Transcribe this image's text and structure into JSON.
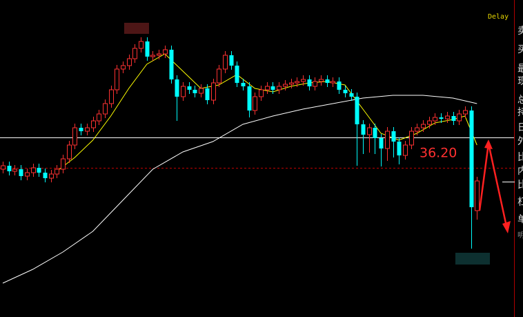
{
  "chart_data": {
    "type": "candlestick",
    "status": "Delay",
    "annotation": "36.20",
    "side_labels": [
      "卖",
      "买",
      "最",
      "现",
      "总",
      "持",
      "日",
      "外",
      "比",
      "内",
      "比",
      "杠",
      "单",
      "明"
    ],
    "ylim": [
      34.04,
      38.63
    ],
    "up_color": "#ff3232",
    "down_color": "#00ffff",
    "open": [
      36.18,
      36.23,
      36.15,
      36.18,
      36.08,
      36.13,
      36.2,
      36.13,
      36.05,
      36.11,
      36.18,
      36.33,
      36.53,
      36.78,
      36.73,
      36.78,
      36.88,
      36.98,
      37.13,
      37.33,
      37.63,
      37.68,
      37.78,
      37.93,
      38.03,
      37.81,
      37.83,
      37.85,
      37.91,
      37.48,
      37.23,
      37.38,
      37.33,
      37.28,
      37.35,
      37.18,
      37.43,
      37.63,
      37.83,
      37.68,
      37.43,
      37.38,
      37.03,
      37.23,
      37.33,
      37.38,
      37.33,
      37.38,
      37.41,
      37.43,
      37.45,
      37.48,
      37.38,
      37.45,
      37.48,
      37.43,
      37.45,
      37.33,
      37.28,
      37.23,
      36.83,
      36.68,
      36.78,
      36.63,
      36.48,
      36.73,
      36.58,
      36.38,
      36.53,
      36.73,
      36.78,
      36.83,
      36.88,
      36.93,
      36.91,
      36.95,
      36.88,
      36.98,
      37.03,
      35.58
    ],
    "high": [
      36.29,
      36.29,
      36.24,
      36.24,
      36.19,
      36.26,
      36.26,
      36.19,
      36.17,
      36.24,
      36.39,
      36.59,
      36.84,
      36.84,
      36.84,
      36.94,
      37.04,
      37.19,
      37.39,
      37.69,
      37.74,
      37.84,
      37.99,
      38.09,
      38.09,
      37.89,
      37.91,
      37.97,
      37.97,
      37.54,
      37.44,
      37.44,
      37.39,
      37.41,
      37.41,
      37.49,
      37.69,
      37.89,
      37.89,
      37.74,
      37.49,
      37.44,
      37.29,
      37.39,
      37.44,
      37.44,
      37.44,
      37.47,
      37.49,
      37.51,
      37.54,
      37.54,
      37.51,
      37.54,
      37.54,
      37.51,
      37.51,
      37.39,
      37.34,
      37.29,
      36.89,
      36.84,
      36.84,
      36.69,
      36.79,
      36.79,
      36.64,
      36.59,
      36.79,
      36.84,
      36.89,
      36.94,
      36.99,
      36.99,
      37.01,
      37.01,
      37.04,
      37.09,
      37.09,
      36.07
    ],
    "low": [
      36.12,
      36.09,
      36.09,
      36.02,
      36.02,
      36.07,
      36.07,
      35.99,
      35.99,
      36.05,
      36.12,
      36.27,
      36.47,
      36.67,
      36.67,
      36.72,
      36.82,
      36.92,
      37.07,
      37.27,
      37.57,
      37.62,
      37.72,
      37.87,
      37.75,
      37.75,
      37.77,
      37.79,
      37.42,
      36.88,
      37.17,
      37.27,
      37.22,
      37.22,
      37.12,
      37.12,
      37.37,
      37.57,
      37.62,
      37.37,
      37.32,
      36.93,
      36.97,
      37.17,
      37.27,
      37.27,
      37.27,
      37.32,
      37.35,
      37.37,
      37.39,
      37.32,
      37.32,
      37.39,
      37.37,
      37.37,
      37.27,
      37.22,
      37.17,
      36.23,
      36.4,
      36.42,
      36.4,
      36.22,
      36.3,
      36.35,
      36.25,
      36.32,
      36.47,
      36.67,
      36.72,
      36.77,
      36.82,
      36.85,
      36.85,
      36.82,
      36.82,
      36.92,
      35.03,
      35.45
    ],
    "close": [
      36.23,
      36.15,
      36.18,
      36.08,
      36.13,
      36.2,
      36.13,
      36.05,
      36.11,
      36.18,
      36.33,
      36.53,
      36.78,
      36.73,
      36.78,
      36.88,
      36.98,
      37.13,
      37.33,
      37.63,
      37.68,
      37.78,
      37.93,
      38.03,
      37.81,
      37.83,
      37.85,
      37.91,
      37.48,
      37.23,
      37.38,
      37.33,
      37.28,
      37.35,
      37.18,
      37.43,
      37.63,
      37.83,
      37.68,
      37.43,
      37.38,
      37.03,
      37.23,
      37.33,
      37.38,
      37.33,
      37.38,
      37.41,
      37.43,
      37.45,
      37.48,
      37.38,
      37.45,
      37.48,
      37.43,
      37.45,
      37.33,
      37.28,
      37.23,
      36.83,
      36.68,
      36.78,
      36.63,
      36.48,
      36.73,
      36.58,
      36.38,
      36.53,
      36.73,
      36.78,
      36.83,
      36.88,
      36.93,
      36.91,
      36.95,
      36.88,
      36.98,
      37.03,
      35.63,
      36.01
    ],
    "moving_averages": [
      {
        "color": "#ffffff",
        "x": [
          0,
          5,
          10,
          15,
          20,
          25,
          30,
          35,
          40,
          45,
          50,
          55,
          60,
          65,
          70,
          75,
          79
        ],
        "values": [
          34.53,
          34.73,
          34.98,
          35.28,
          35.73,
          36.18,
          36.43,
          36.58,
          36.83,
          36.95,
          37.05,
          37.13,
          37.21,
          37.25,
          37.25,
          37.21,
          37.13
        ]
      },
      {
        "color": "#ffff00",
        "x": [
          9,
          12,
          15,
          18,
          21,
          24,
          27,
          30,
          33,
          36,
          39,
          42,
          45,
          48,
          51,
          54,
          57,
          60,
          63,
          66,
          69,
          72,
          75,
          77,
          79
        ],
        "values": [
          36.15,
          36.35,
          36.6,
          36.95,
          37.35,
          37.7,
          37.85,
          37.6,
          37.35,
          37.4,
          37.55,
          37.35,
          37.3,
          37.38,
          37.43,
          37.45,
          37.4,
          37.05,
          36.7,
          36.6,
          36.7,
          36.85,
          36.9,
          36.95,
          36.53
        ]
      }
    ],
    "reference_lines": [
      {
        "value": 36.64,
        "color": "#ffffff",
        "dashed": false
      },
      {
        "value": 36.2,
        "color": "#c00000",
        "dashed": true
      }
    ]
  }
}
